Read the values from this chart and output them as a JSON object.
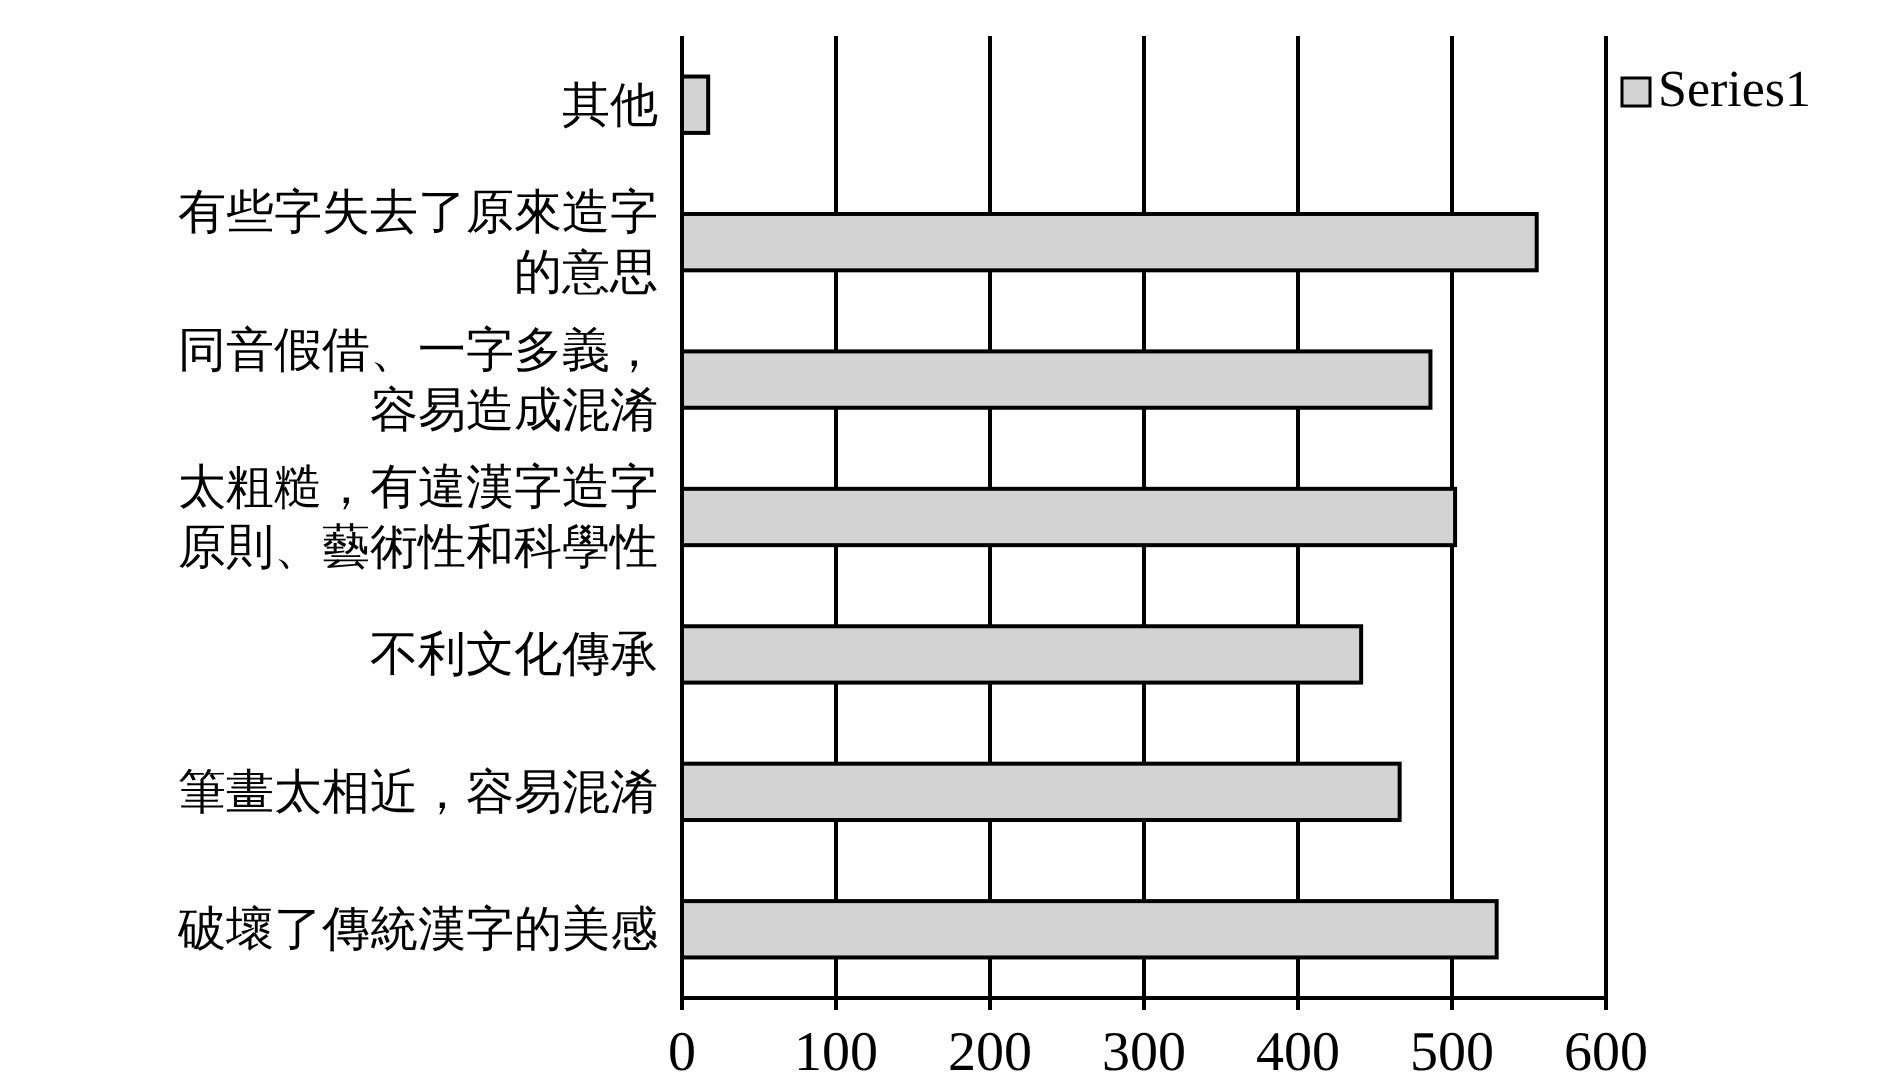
{
  "chart_data": {
    "type": "bar",
    "orientation": "horizontal",
    "categories": [
      "其他",
      "有些字失去了原來造字的意思",
      "同音假借、一字多義，容易造成混淆",
      "太粗糙，有違漢字造字原則、藝術性和科學性",
      "不利文化傳承",
      "筆畫太相近，容易混淆",
      "破壞了傳統漢字的美感"
    ],
    "series": [
      {
        "name": "Series1",
        "color": "#d3d3d3",
        "values": [
          17,
          555,
          486,
          502,
          441,
          466,
          529
        ]
      }
    ],
    "xlim": [
      0,
      600
    ],
    "xticks": [
      0,
      100,
      200,
      300,
      400,
      500,
      600
    ],
    "grid": "x",
    "legend": "top right"
  }
}
